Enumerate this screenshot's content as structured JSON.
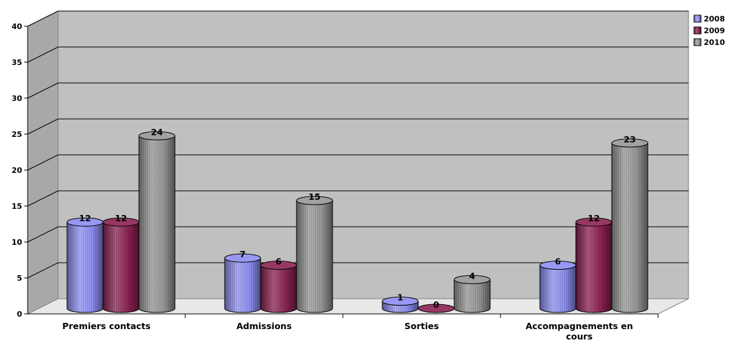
{
  "chart_data": {
    "type": "bar",
    "variant": "3d-cylinder",
    "categories": [
      "Premiers contacts",
      "Admissions",
      "Sorties",
      "Accompagnements en cours"
    ],
    "series": [
      {
        "name": "2008",
        "values": [
          12,
          7,
          1,
          6
        ],
        "color": "#8d8df0"
      },
      {
        "name": "2009",
        "values": [
          12,
          6,
          0,
          12
        ],
        "color": "#8b2252"
      },
      {
        "name": "2010",
        "values": [
          24,
          15,
          4,
          23
        ],
        "color": "#969696"
      }
    ],
    "yticks": [
      "0",
      "5",
      "10",
      "15",
      "20",
      "25",
      "30",
      "35",
      "40"
    ],
    "ylim": [
      0,
      40
    ],
    "grid": true,
    "legend": "top-right",
    "data_labels": true,
    "wall_color": "#c0c0c0"
  }
}
